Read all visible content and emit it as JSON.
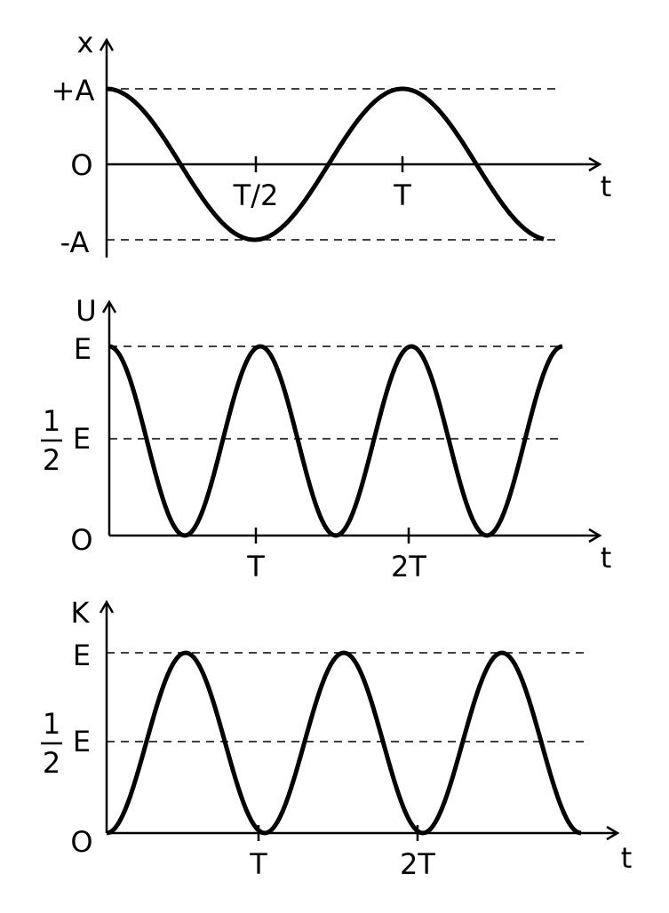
{
  "graphs": [
    {
      "y_axis_label": "x",
      "x_axis_label": "t",
      "y_labels": {
        "top": "+A",
        "origin": "O",
        "bottom": "-A"
      },
      "x_ticks": [
        "T/2",
        "T"
      ]
    },
    {
      "y_axis_label": "U",
      "x_axis_label": "t",
      "y_labels": {
        "top": "E",
        "half": {
          "numerator": "1",
          "denominator": "2",
          "symbol": "E"
        },
        "origin": "O"
      },
      "x_ticks": [
        "T",
        "2T"
      ]
    },
    {
      "y_axis_label": "K",
      "x_axis_label": "t",
      "y_labels": {
        "top": "E",
        "half": {
          "numerator": "1",
          "denominator": "2",
          "symbol": "E"
        },
        "origin": "O"
      },
      "x_ticks": [
        "T",
        "2T"
      ]
    }
  ]
}
